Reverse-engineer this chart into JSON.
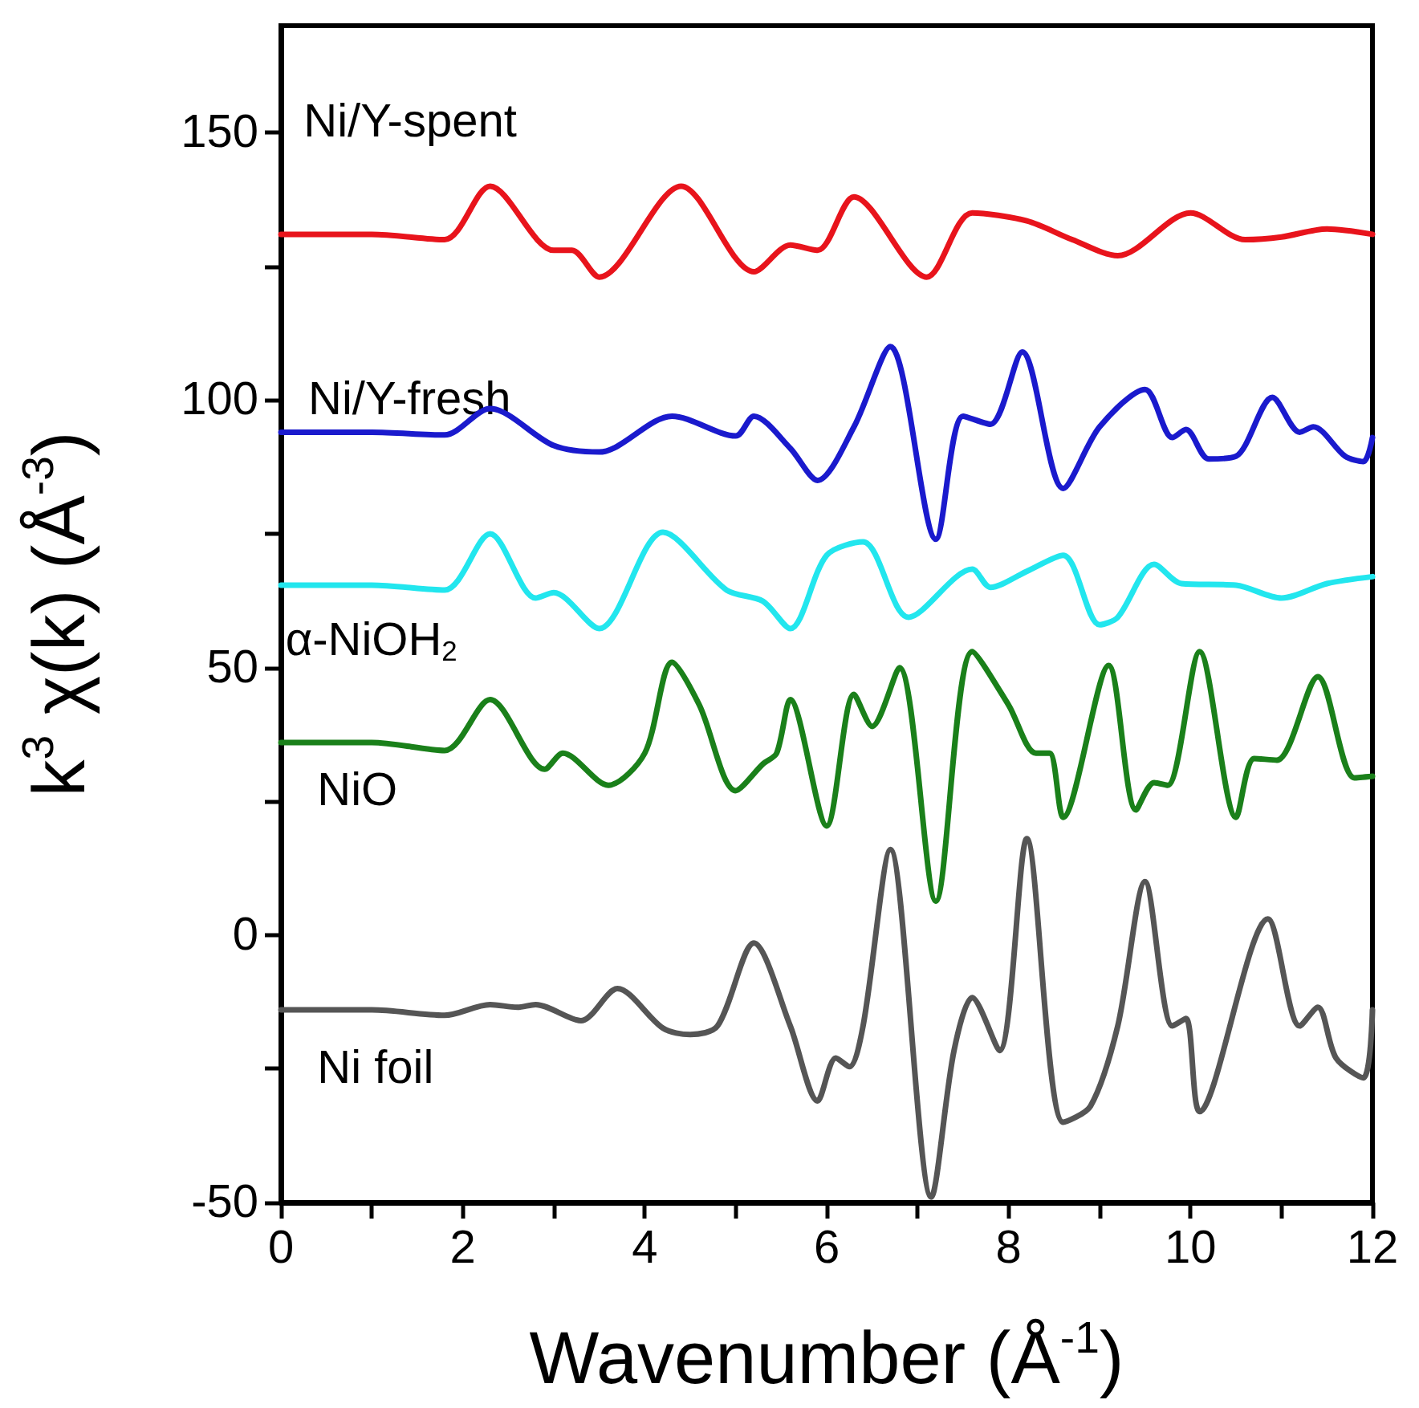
{
  "chart_data": {
    "type": "line",
    "xlabel": "Wavenumber (Å$^{-1}$)",
    "ylabel": "k$^{3}$ χ(k) (Å$^{-3}$)",
    "xlim": [
      0,
      12
    ],
    "xticks": [
      0,
      {
        "value": 1,
        "label": null
      },
      2,
      {
        "value": 3,
        "label": null
      },
      4,
      {
        "value": 5,
        "label": null
      },
      6,
      {
        "value": 7,
        "label": null
      },
      8,
      {
        "value": 9,
        "label": null
      },
      10,
      {
        "value": 11,
        "label": null
      },
      12
    ],
    "ylim": [
      -50,
      170
    ],
    "yticks": [
      -50,
      {
        "value": -25,
        "label": null
      },
      0,
      {
        "value": 25,
        "label": null
      },
      50,
      {
        "value": 75,
        "label": null
      },
      100,
      {
        "value": 125,
        "label": null
      },
      150
    ],
    "grid": false,
    "legend": false,
    "marker": "none",
    "line_style": "solid",
    "series": [
      {
        "name": "Ni/Y-spent",
        "color": "#e8141c",
        "x": [
          0,
          1,
          1.8,
          2.3,
          3.0,
          3.2,
          3.5,
          4.4,
          5.2,
          5.6,
          5.9,
          6.3,
          7.1,
          7.6,
          8.2,
          8.7,
          9.2,
          10.0,
          10.6,
          11.0,
          11.5,
          12
        ],
        "values": [
          131,
          131,
          130,
          140,
          128,
          128,
          123,
          140,
          124,
          129,
          128,
          138,
          123,
          135,
          133.5,
          130,
          127,
          135,
          130,
          130.5,
          132,
          131
        ]
      },
      {
        "name": "Ni/Y-fresh",
        "color": "#1a1acd",
        "x": [
          0,
          1,
          1.8,
          2.3,
          3.0,
          3.5,
          4.3,
          5.0,
          5.2,
          5.6,
          5.9,
          6.3,
          6.7,
          7.2,
          7.5,
          7.8,
          8.15,
          8.6,
          9.0,
          9.5,
          9.8,
          9.95,
          10.2,
          10.5,
          10.9,
          11.2,
          11.35,
          11.7,
          11.9,
          12
        ],
        "values": [
          94,
          94,
          93.5,
          98.4,
          91.5,
          90.3,
          97,
          93.3,
          97,
          91,
          85,
          95,
          110,
          74,
          97,
          95.5,
          109,
          83.5,
          95,
          102,
          93,
          94.5,
          89,
          89.5,
          100.5,
          94,
          95,
          89.5,
          88.5,
          93
        ]
      },
      {
        "name": "α-NiOH$_{2}$",
        "color": "#22e6ee",
        "x": [
          0,
          1,
          1.8,
          2.3,
          2.8,
          3.0,
          3.5,
          4.2,
          4.9,
          5.3,
          5.6,
          6.0,
          6.4,
          6.9,
          7.6,
          7.8,
          8.2,
          8.6,
          9.0,
          9.2,
          9.6,
          9.9,
          10.5,
          11.0,
          11.5,
          12
        ],
        "values": [
          65.4,
          65.4,
          64.5,
          75,
          63,
          64,
          57.3,
          75.3,
          64.5,
          62.4,
          57.3,
          71,
          73.5,
          59.4,
          68.4,
          65,
          68,
          71,
          58,
          59.4,
          69.3,
          65.7,
          65.4,
          63,
          65.7,
          67
        ]
      },
      {
        "name": "NiO",
        "color": "#1a801a",
        "x": [
          0,
          1,
          1.8,
          2.3,
          2.9,
          3.1,
          3.6,
          4.0,
          4.3,
          4.6,
          5.0,
          5.3,
          5.45,
          5.6,
          6.0,
          6.3,
          6.5,
          6.8,
          7.2,
          7.6,
          8.0,
          8.3,
          8.45,
          8.6,
          9.1,
          9.4,
          9.6,
          9.75,
          10.1,
          10.5,
          10.7,
          10.95,
          11.4,
          11.8,
          12
        ],
        "values": [
          36,
          36,
          34.5,
          44,
          31,
          34,
          28,
          34,
          51,
          43,
          27,
          32,
          34,
          44,
          20.4,
          45,
          39,
          50,
          6.3,
          53,
          43,
          34,
          34,
          22,
          50.4,
          23.4,
          28.5,
          28,
          53,
          22,
          33,
          32.7,
          48.3,
          29.4,
          29.7
        ]
      },
      {
        "name": "Ni foil",
        "color": "#555555",
        "x": [
          0,
          1,
          1.8,
          2.3,
          2.6,
          2.8,
          3.3,
          3.7,
          4.2,
          4.5,
          4.8,
          5.2,
          5.6,
          5.9,
          6.1,
          6.25,
          6.4,
          6.7,
          7.15,
          7.4,
          7.6,
          7.9,
          8.2,
          8.6,
          8.9,
          9.2,
          9.5,
          9.8,
          9.95,
          10.1,
          10.85,
          11.2,
          11.4,
          11.6,
          11.9,
          12
        ],
        "values": [
          -14,
          -14,
          -15,
          -13,
          -13.5,
          -13,
          -16,
          -10,
          -17.4,
          -18.6,
          -17,
          -1.5,
          -17,
          -31,
          -23,
          -24.6,
          -17,
          16,
          -49,
          -21.6,
          -11.7,
          -21.6,
          18,
          -35,
          -32,
          -17,
          10,
          -17,
          -15.6,
          -33,
          3,
          -17,
          -13.5,
          -23,
          -26.7,
          -14
        ]
      }
    ]
  }
}
